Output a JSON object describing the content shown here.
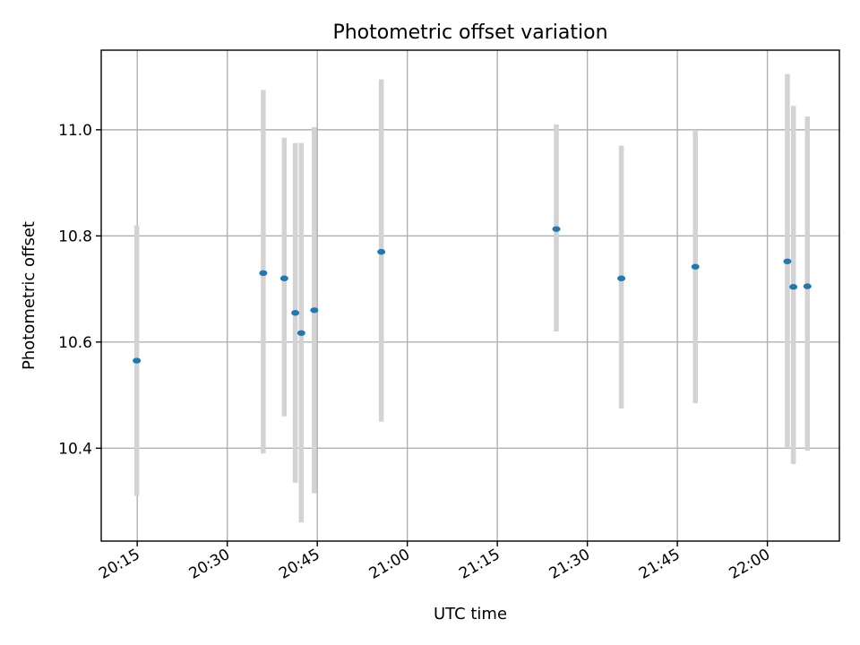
{
  "chart_data": {
    "type": "scatter",
    "title": "Photometric offset variation",
    "xlabel": "UTC time",
    "ylabel": "Photometric offset",
    "xlim": [
      "20:09",
      "22:12"
    ],
    "ylim": [
      10.225,
      11.15
    ],
    "grid": true,
    "x_ticks": [
      "20:15",
      "20:30",
      "20:45",
      "21:00",
      "21:15",
      "21:30",
      "21:45",
      "22:00"
    ],
    "y_ticks": [
      10.4,
      10.6,
      10.8,
      11.0
    ],
    "y_tick_labels": [
      "10.4",
      "10.6",
      "10.8",
      "11.0"
    ],
    "colors": {
      "point": "#1f77b4",
      "error_bar": "#d3d3d3"
    },
    "points": [
      {
        "x": "20:14:55",
        "y": 10.565,
        "y_low": 10.31,
        "y_high": 10.82
      },
      {
        "x": "20:36:00",
        "y": 10.73,
        "y_low": 10.39,
        "y_high": 11.075
      },
      {
        "x": "20:39:30",
        "y": 10.72,
        "y_low": 10.46,
        "y_high": 10.985
      },
      {
        "x": "20:41:20",
        "y": 10.655,
        "y_low": 10.335,
        "y_high": 10.975
      },
      {
        "x": "20:42:20",
        "y": 10.617,
        "y_low": 10.26,
        "y_high": 10.975
      },
      {
        "x": "20:44:30",
        "y": 10.66,
        "y_low": 10.315,
        "y_high": 11.005
      },
      {
        "x": "20:55:40",
        "y": 10.77,
        "y_low": 10.45,
        "y_high": 11.095
      },
      {
        "x": "21:24:50",
        "y": 10.813,
        "y_low": 10.62,
        "y_high": 11.01
      },
      {
        "x": "21:35:40",
        "y": 10.72,
        "y_low": 10.475,
        "y_high": 10.97
      },
      {
        "x": "21:48:00",
        "y": 10.742,
        "y_low": 10.485,
        "y_high": 11.0
      },
      {
        "x": "22:03:20",
        "y": 10.752,
        "y_low": 10.4,
        "y_high": 11.105
      },
      {
        "x": "22:04:20",
        "y": 10.704,
        "y_low": 10.37,
        "y_high": 11.045
      },
      {
        "x": "22:06:40",
        "y": 10.705,
        "y_low": 10.395,
        "y_high": 11.025
      }
    ]
  }
}
